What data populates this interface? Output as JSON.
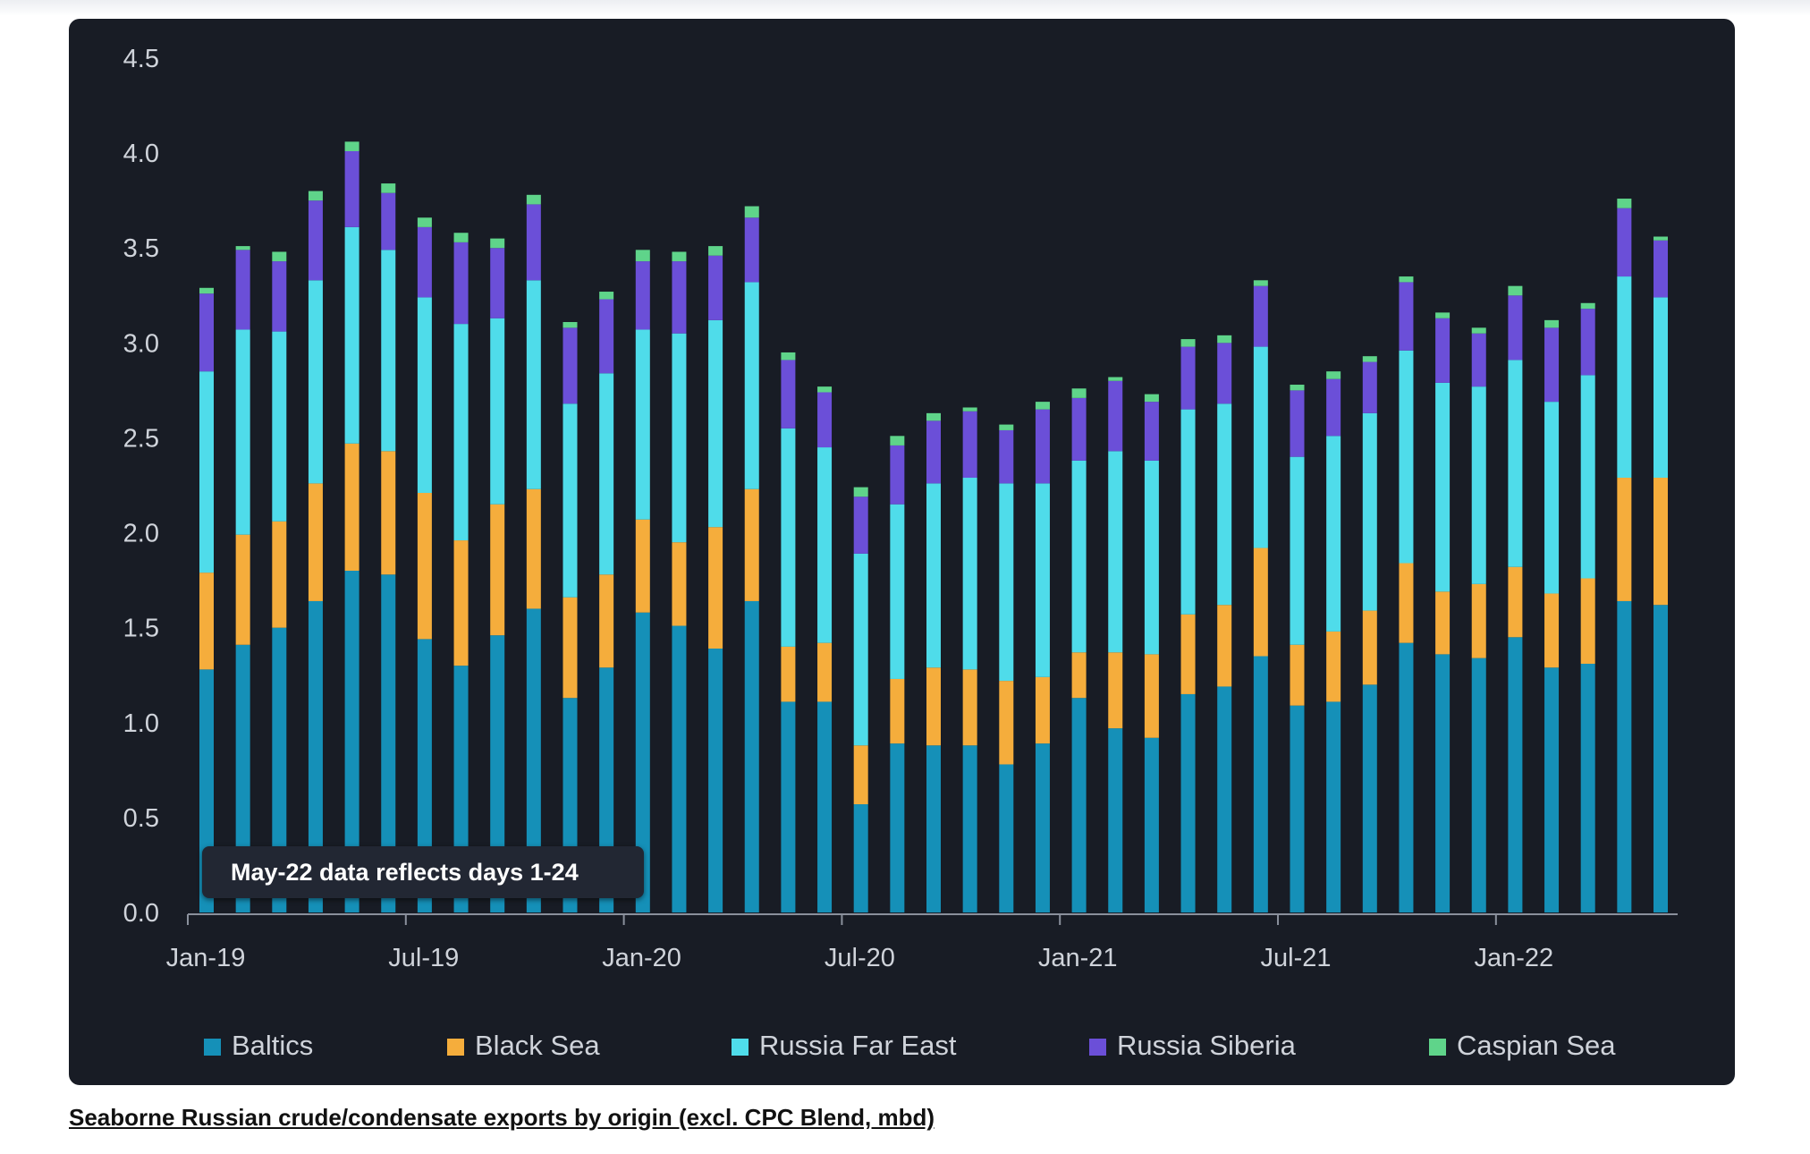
{
  "caption": "Seaborne Russian crude/condensate exports by origin (excl. CPC Blend, mbd)",
  "chart_data": {
    "type": "bar",
    "stacked": true,
    "title": "",
    "xlabel": "",
    "ylabel": "",
    "ylim": [
      0,
      4.5
    ],
    "yticks": [
      "0.0",
      "0.5",
      "1.0",
      "1.5",
      "2.0",
      "2.5",
      "3.0",
      "3.5",
      "4.0",
      "4.5"
    ],
    "xtick_labels": [
      "Jan-19",
      "Jul-19",
      "Jan-20",
      "Jul-20",
      "Jan-21",
      "Jul-21",
      "Jan-22"
    ],
    "categories": [
      "Jan-19",
      "Feb-19",
      "Mar-19",
      "Apr-19",
      "May-19",
      "Jun-19",
      "Jul-19",
      "Aug-19",
      "Sep-19",
      "Oct-19",
      "Nov-19",
      "Dec-19",
      "Jan-20",
      "Feb-20",
      "Mar-20",
      "Apr-20",
      "May-20",
      "Jun-20",
      "Jul-20",
      "Aug-20",
      "Sep-20",
      "Oct-20",
      "Nov-20",
      "Dec-20",
      "Jan-21",
      "Feb-21",
      "Mar-21",
      "Apr-21",
      "May-21",
      "Jun-21",
      "Jul-21",
      "Aug-21",
      "Sep-21",
      "Oct-21",
      "Nov-21",
      "Dec-21",
      "Jan-22",
      "Feb-22",
      "Mar-22",
      "Apr-22",
      "May-22"
    ],
    "grid": false,
    "legend_position": "bottom",
    "annotation": "May-22 data reflects days 1-24",
    "series": [
      {
        "name": "Baltics",
        "color": "#1590b8",
        "values": [
          1.28,
          1.41,
          1.5,
          1.64,
          1.8,
          1.78,
          1.44,
          1.3,
          1.46,
          1.6,
          1.13,
          1.29,
          1.58,
          1.51,
          1.39,
          1.64,
          1.11,
          1.11,
          0.57,
          0.89,
          0.88,
          0.88,
          0.78,
          0.89,
          1.13,
          0.97,
          0.92,
          1.15,
          1.19,
          1.35,
          1.09,
          1.11,
          1.2,
          1.42,
          1.36,
          1.34,
          1.45,
          1.29,
          1.31,
          1.64,
          1.62
        ]
      },
      {
        "name": "Black Sea",
        "color": "#f5ad3c",
        "values": [
          0.51,
          0.58,
          0.56,
          0.62,
          0.67,
          0.65,
          0.77,
          0.66,
          0.69,
          0.63,
          0.53,
          0.49,
          0.49,
          0.44,
          0.64,
          0.59,
          0.29,
          0.31,
          0.31,
          0.34,
          0.41,
          0.4,
          0.44,
          0.35,
          0.24,
          0.4,
          0.44,
          0.42,
          0.43,
          0.57,
          0.32,
          0.37,
          0.39,
          0.42,
          0.33,
          0.39,
          0.37,
          0.39,
          0.45,
          0.65,
          0.67
        ]
      },
      {
        "name": "Russia Far East",
        "color": "#4fdcea",
        "values": [
          1.06,
          1.08,
          1.0,
          1.07,
          1.14,
          1.06,
          1.03,
          1.14,
          0.98,
          1.1,
          1.02,
          1.06,
          1.0,
          1.1,
          1.09,
          1.09,
          1.15,
          1.03,
          1.01,
          0.92,
          0.97,
          1.01,
          1.04,
          1.02,
          1.01,
          1.06,
          1.02,
          1.08,
          1.06,
          1.06,
          0.99,
          1.03,
          1.04,
          1.12,
          1.1,
          1.04,
          1.09,
          1.01,
          1.07,
          1.06,
          0.95
        ]
      },
      {
        "name": "Russia Siberia",
        "color": "#6b4fd8",
        "values": [
          0.41,
          0.42,
          0.37,
          0.42,
          0.4,
          0.3,
          0.37,
          0.43,
          0.37,
          0.4,
          0.4,
          0.39,
          0.36,
          0.38,
          0.34,
          0.34,
          0.36,
          0.29,
          0.3,
          0.31,
          0.33,
          0.35,
          0.28,
          0.39,
          0.33,
          0.37,
          0.31,
          0.33,
          0.32,
          0.32,
          0.35,
          0.3,
          0.27,
          0.36,
          0.34,
          0.28,
          0.34,
          0.39,
          0.35,
          0.36,
          0.3
        ]
      },
      {
        "name": "Caspian Sea",
        "color": "#5fd48a",
        "values": [
          0.03,
          0.02,
          0.05,
          0.05,
          0.05,
          0.05,
          0.05,
          0.05,
          0.05,
          0.05,
          0.03,
          0.04,
          0.06,
          0.05,
          0.05,
          0.06,
          0.04,
          0.03,
          0.05,
          0.05,
          0.04,
          0.02,
          0.03,
          0.04,
          0.05,
          0.02,
          0.04,
          0.04,
          0.04,
          0.03,
          0.03,
          0.04,
          0.03,
          0.03,
          0.03,
          0.03,
          0.05,
          0.04,
          0.03,
          0.05,
          0.02
        ]
      }
    ]
  }
}
